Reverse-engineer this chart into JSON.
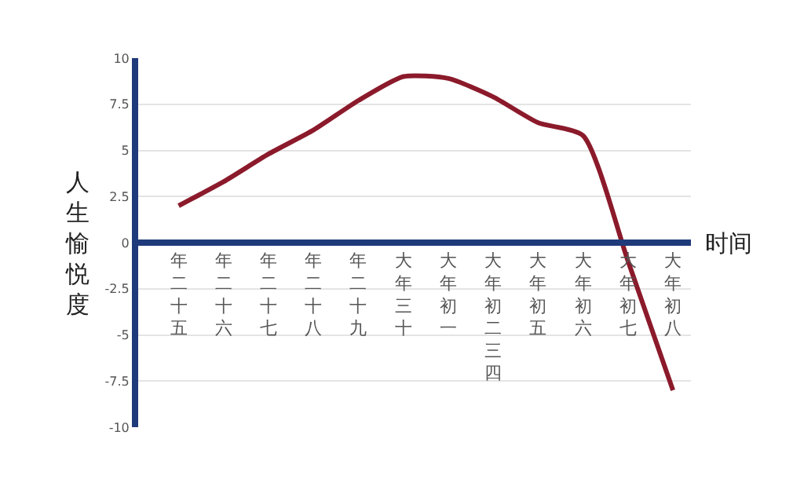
{
  "chart_data": {
    "type": "line",
    "xlabel": "时间",
    "ylabel": "人生愉悦度",
    "categories": [
      "年二十五",
      "年二十六",
      "年二十七",
      "年二十八",
      "年二十九",
      "大年三十",
      "大年初一",
      "大年初二三四",
      "大年初五",
      "大年初六",
      "大年初七",
      "大年初八"
    ],
    "series": [
      {
        "color": "#8b1a2b",
        "values": [
          2.0,
          3.3,
          4.8,
          6.1,
          7.7,
          9.0,
          8.9,
          7.9,
          6.5,
          5.8,
          -1.0,
          -8.0
        ]
      }
    ],
    "ylim": [
      -10,
      10
    ],
    "yticks": [
      -10,
      -7.5,
      -5,
      -2.5,
      0,
      2.5,
      5,
      7.5,
      10
    ],
    "grid": "y",
    "marker": "none",
    "line_style": "solid"
  }
}
